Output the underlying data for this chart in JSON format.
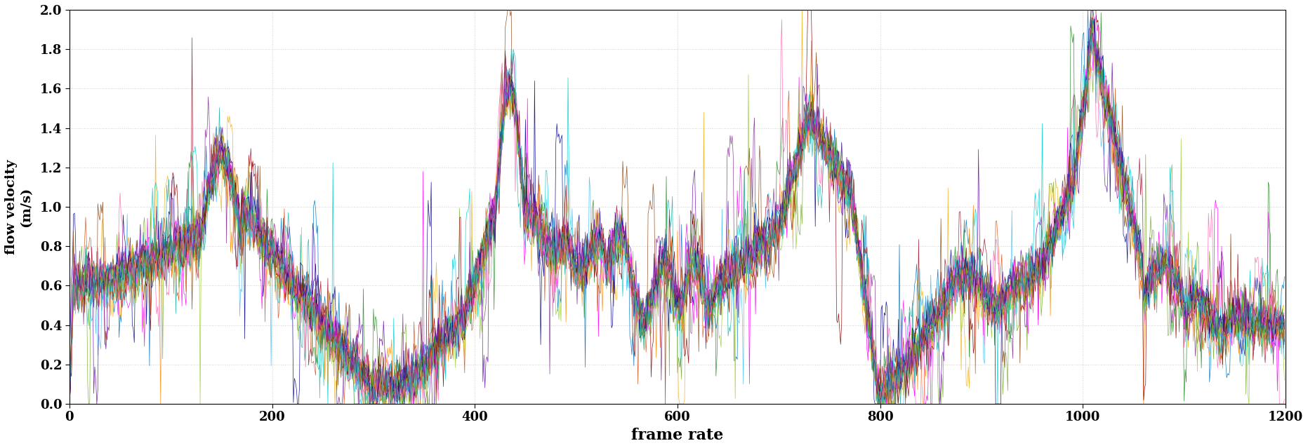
{
  "title": "",
  "xlabel": "frame rate",
  "ylabel": "flow velocity\n(m/s)",
  "xlim": [
    0,
    1200
  ],
  "ylim": [
    0,
    2.0
  ],
  "yticks": [
    0,
    0.2,
    0.4,
    0.6,
    0.8,
    1.0,
    1.2,
    1.4,
    1.6,
    1.8,
    2.0
  ],
  "xticks": [
    0,
    200,
    400,
    600,
    800,
    1000,
    1200
  ],
  "n_series": 18,
  "n_points": 1200,
  "colors": [
    "#0072BD",
    "#D95319",
    "#EDB120",
    "#7E2F8E",
    "#77AC30",
    "#4DBEEE",
    "#A2142F",
    "#FF00FF",
    "#00CED1",
    "#FF8C00",
    "#228B22",
    "#8B0000",
    "#00008B",
    "#9ACD32",
    "#8B4513",
    "#FF69B4",
    "#6A0DAD",
    "#20B2AA"
  ],
  "background_color": "#ffffff",
  "grid_color": "#cccccc",
  "linewidth": 0.5,
  "xlabel_fontsize": 16,
  "ylabel_fontsize": 14,
  "tick_fontsize": 13
}
